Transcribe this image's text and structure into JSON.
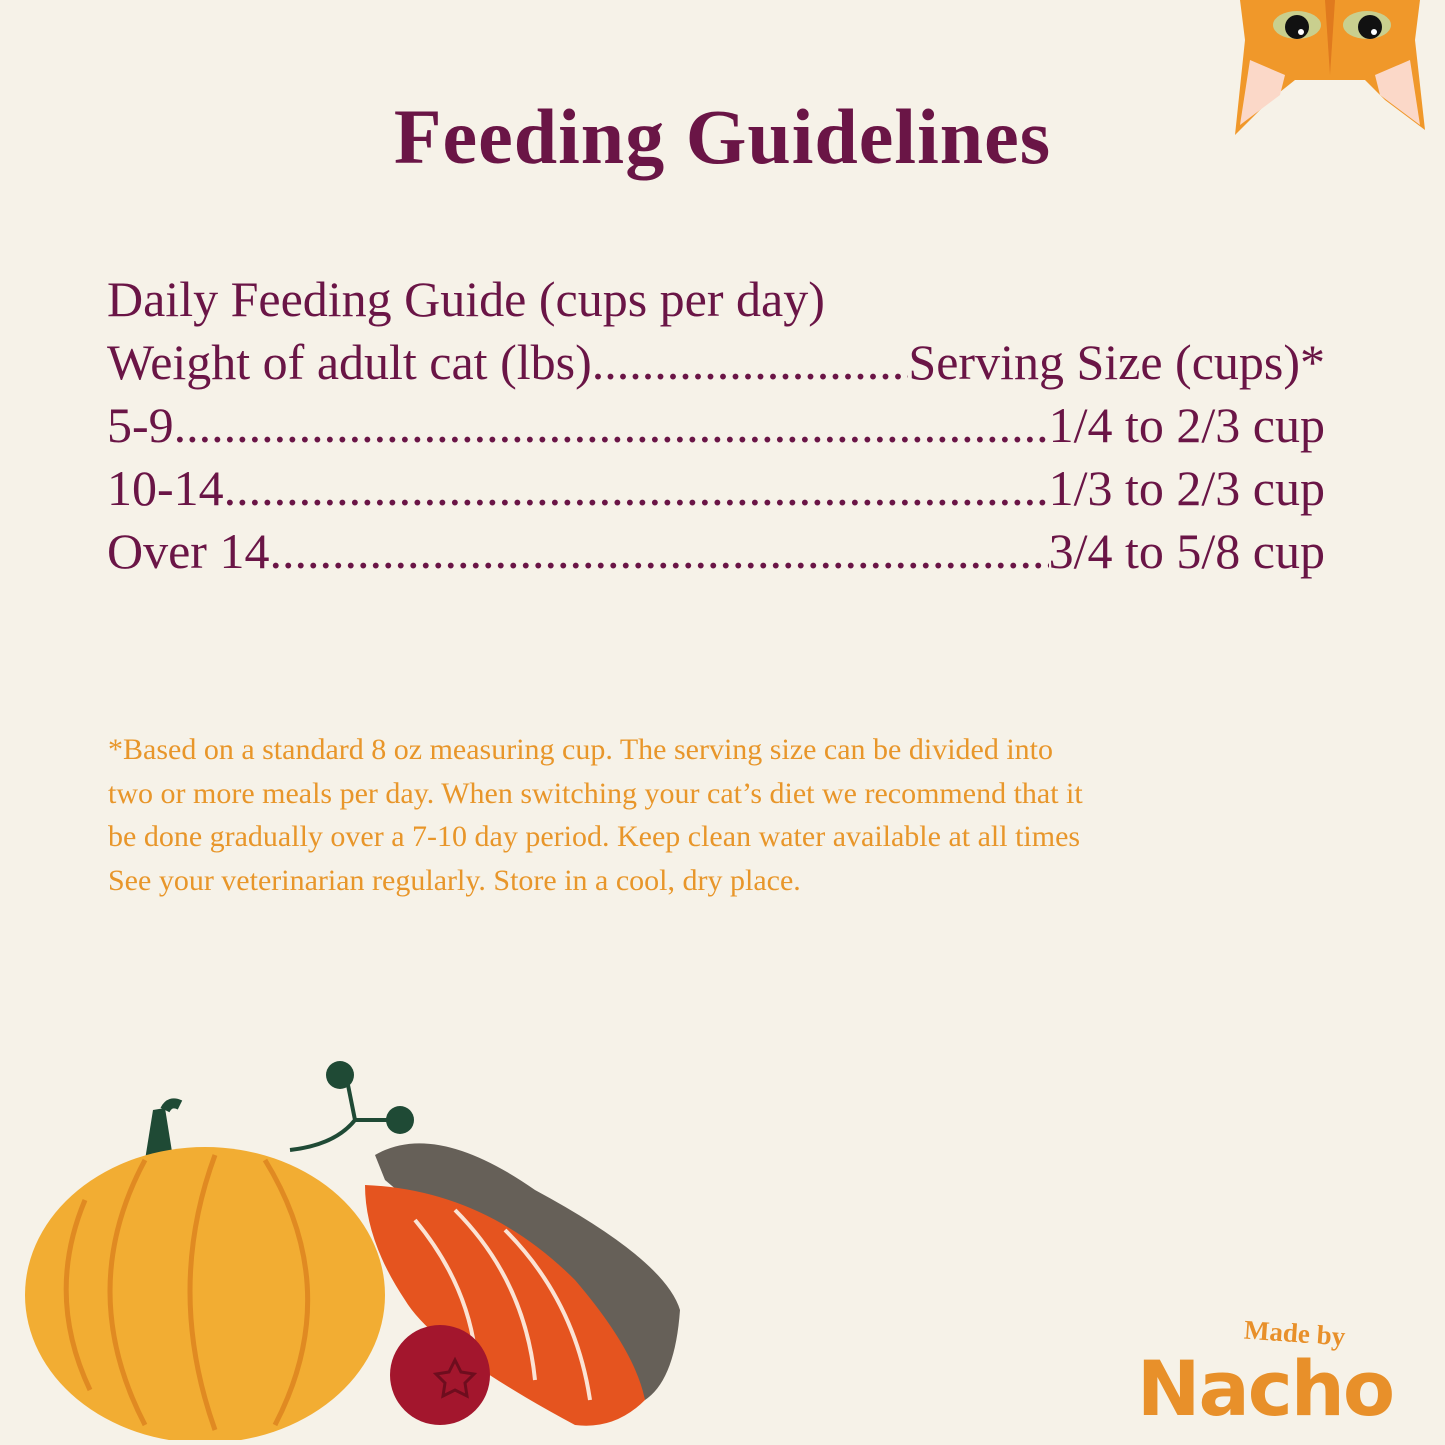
{
  "title": "Feeding Guidelines",
  "guide": {
    "heading": "Daily Feeding Guide (cups per day)",
    "column_left": "Weight of adult cat (lbs)",
    "column_right": "Serving Size (cups)*",
    "rows": [
      {
        "weight": "5-9",
        "serving": "1/4 to 2/3 cup"
      },
      {
        "weight": "10-14",
        "serving": "1/3 to 2/3 cup"
      },
      {
        "weight": "Over 14",
        "serving": "3/4 to 5/8 cup"
      }
    ]
  },
  "footnote": [
    "*Based on a standard 8 oz measuring cup. The serving size can be divided into",
    "two or more meals per day. When switching your cat’s diet we recommend that it",
    "be done gradually over a 7-10 day period. Keep clean water available at all times",
    "See your veterinarian regularly. Store in a cool, dry place."
  ],
  "logo": {
    "made_by": "Made by",
    "brand": "Nacho"
  },
  "colors": {
    "background": "#f6f2e8",
    "primary_text": "#6a1546",
    "accent": "#e8962a"
  }
}
